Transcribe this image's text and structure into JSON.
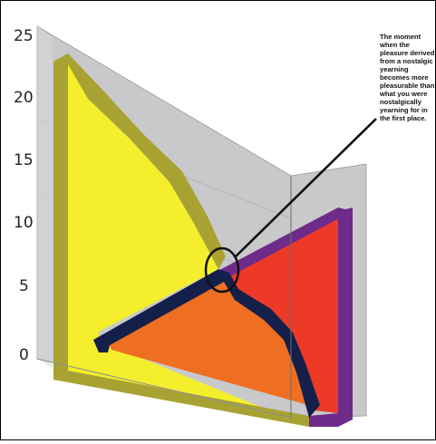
{
  "chart_data": {
    "type": "area",
    "style": "3d-layered",
    "ylim": [
      0,
      25
    ],
    "y_ticks": [
      "0",
      "5",
      "10",
      "15",
      "20",
      "25"
    ],
    "grid": true,
    "series": [
      {
        "color": "#F4EE2C",
        "edge_color": "#A8A233"
      },
      {
        "color": "#EE6F21",
        "edge_color": "#14204A"
      },
      {
        "color": "#EC3A26",
        "edge_color": "#6E2B8A"
      }
    ],
    "annotation": {
      "lines": [
        "The moment",
        "when the",
        "pleasure derived",
        "from a nostalgic",
        "yearning",
        "becomes more",
        "pleasurable than",
        "what you were",
        "nostalgically",
        "yearning for in",
        "the first place."
      ],
      "pointer_target": "intersection"
    },
    "colors": {
      "back_panel": "#C9C9CB",
      "background": "#FFFFFF",
      "frame": "#000000"
    }
  }
}
